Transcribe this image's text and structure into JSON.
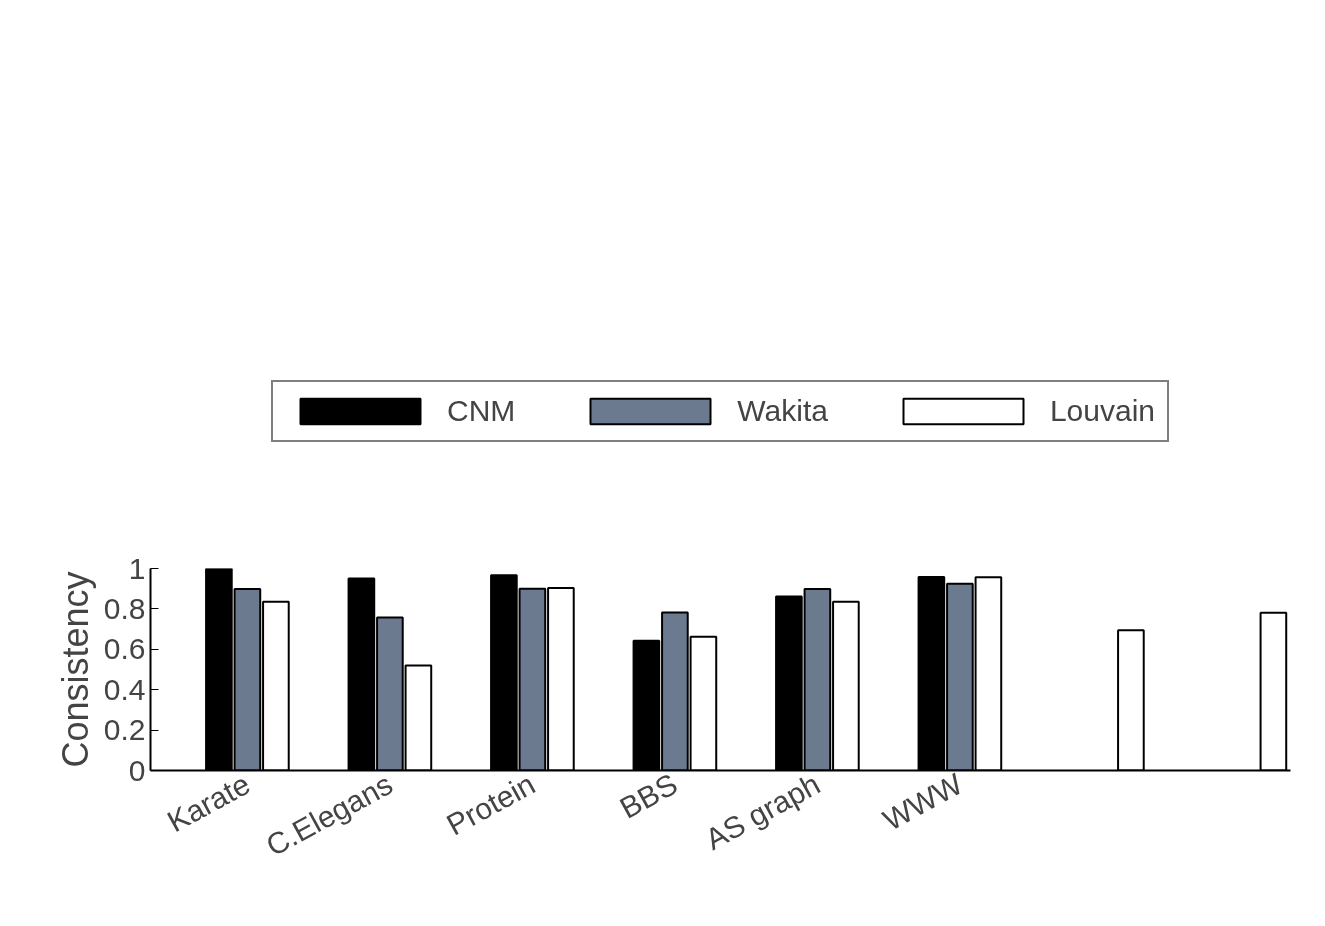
{
  "chart_data": {
    "type": "bar",
    "ylabel": "Consistency",
    "categories": [
      "Karate",
      "C.Elegans",
      "Protein",
      "BBS",
      "AS graph",
      "WWW",
      null,
      null
    ],
    "series": [
      {
        "name": "CNM",
        "color": "#000000",
        "values": [
          1.0,
          0.95,
          0.966,
          0.642,
          0.861,
          0.958,
          null,
          null
        ]
      },
      {
        "name": "Wakita",
        "color": "#6b7a8f",
        "values": [
          0.898,
          0.758,
          0.9,
          0.782,
          0.898,
          0.924,
          null,
          null
        ]
      },
      {
        "name": "Louvain",
        "color": "#ffffff",
        "values": [
          0.835,
          0.52,
          0.903,
          0.662,
          0.835,
          0.957,
          0.694,
          0.781
        ]
      }
    ],
    "ylim": [
      0,
      1
    ],
    "yticks": [
      0,
      0.2,
      0.4,
      0.6,
      0.8,
      1
    ],
    "grid": false,
    "legend": "top"
  }
}
